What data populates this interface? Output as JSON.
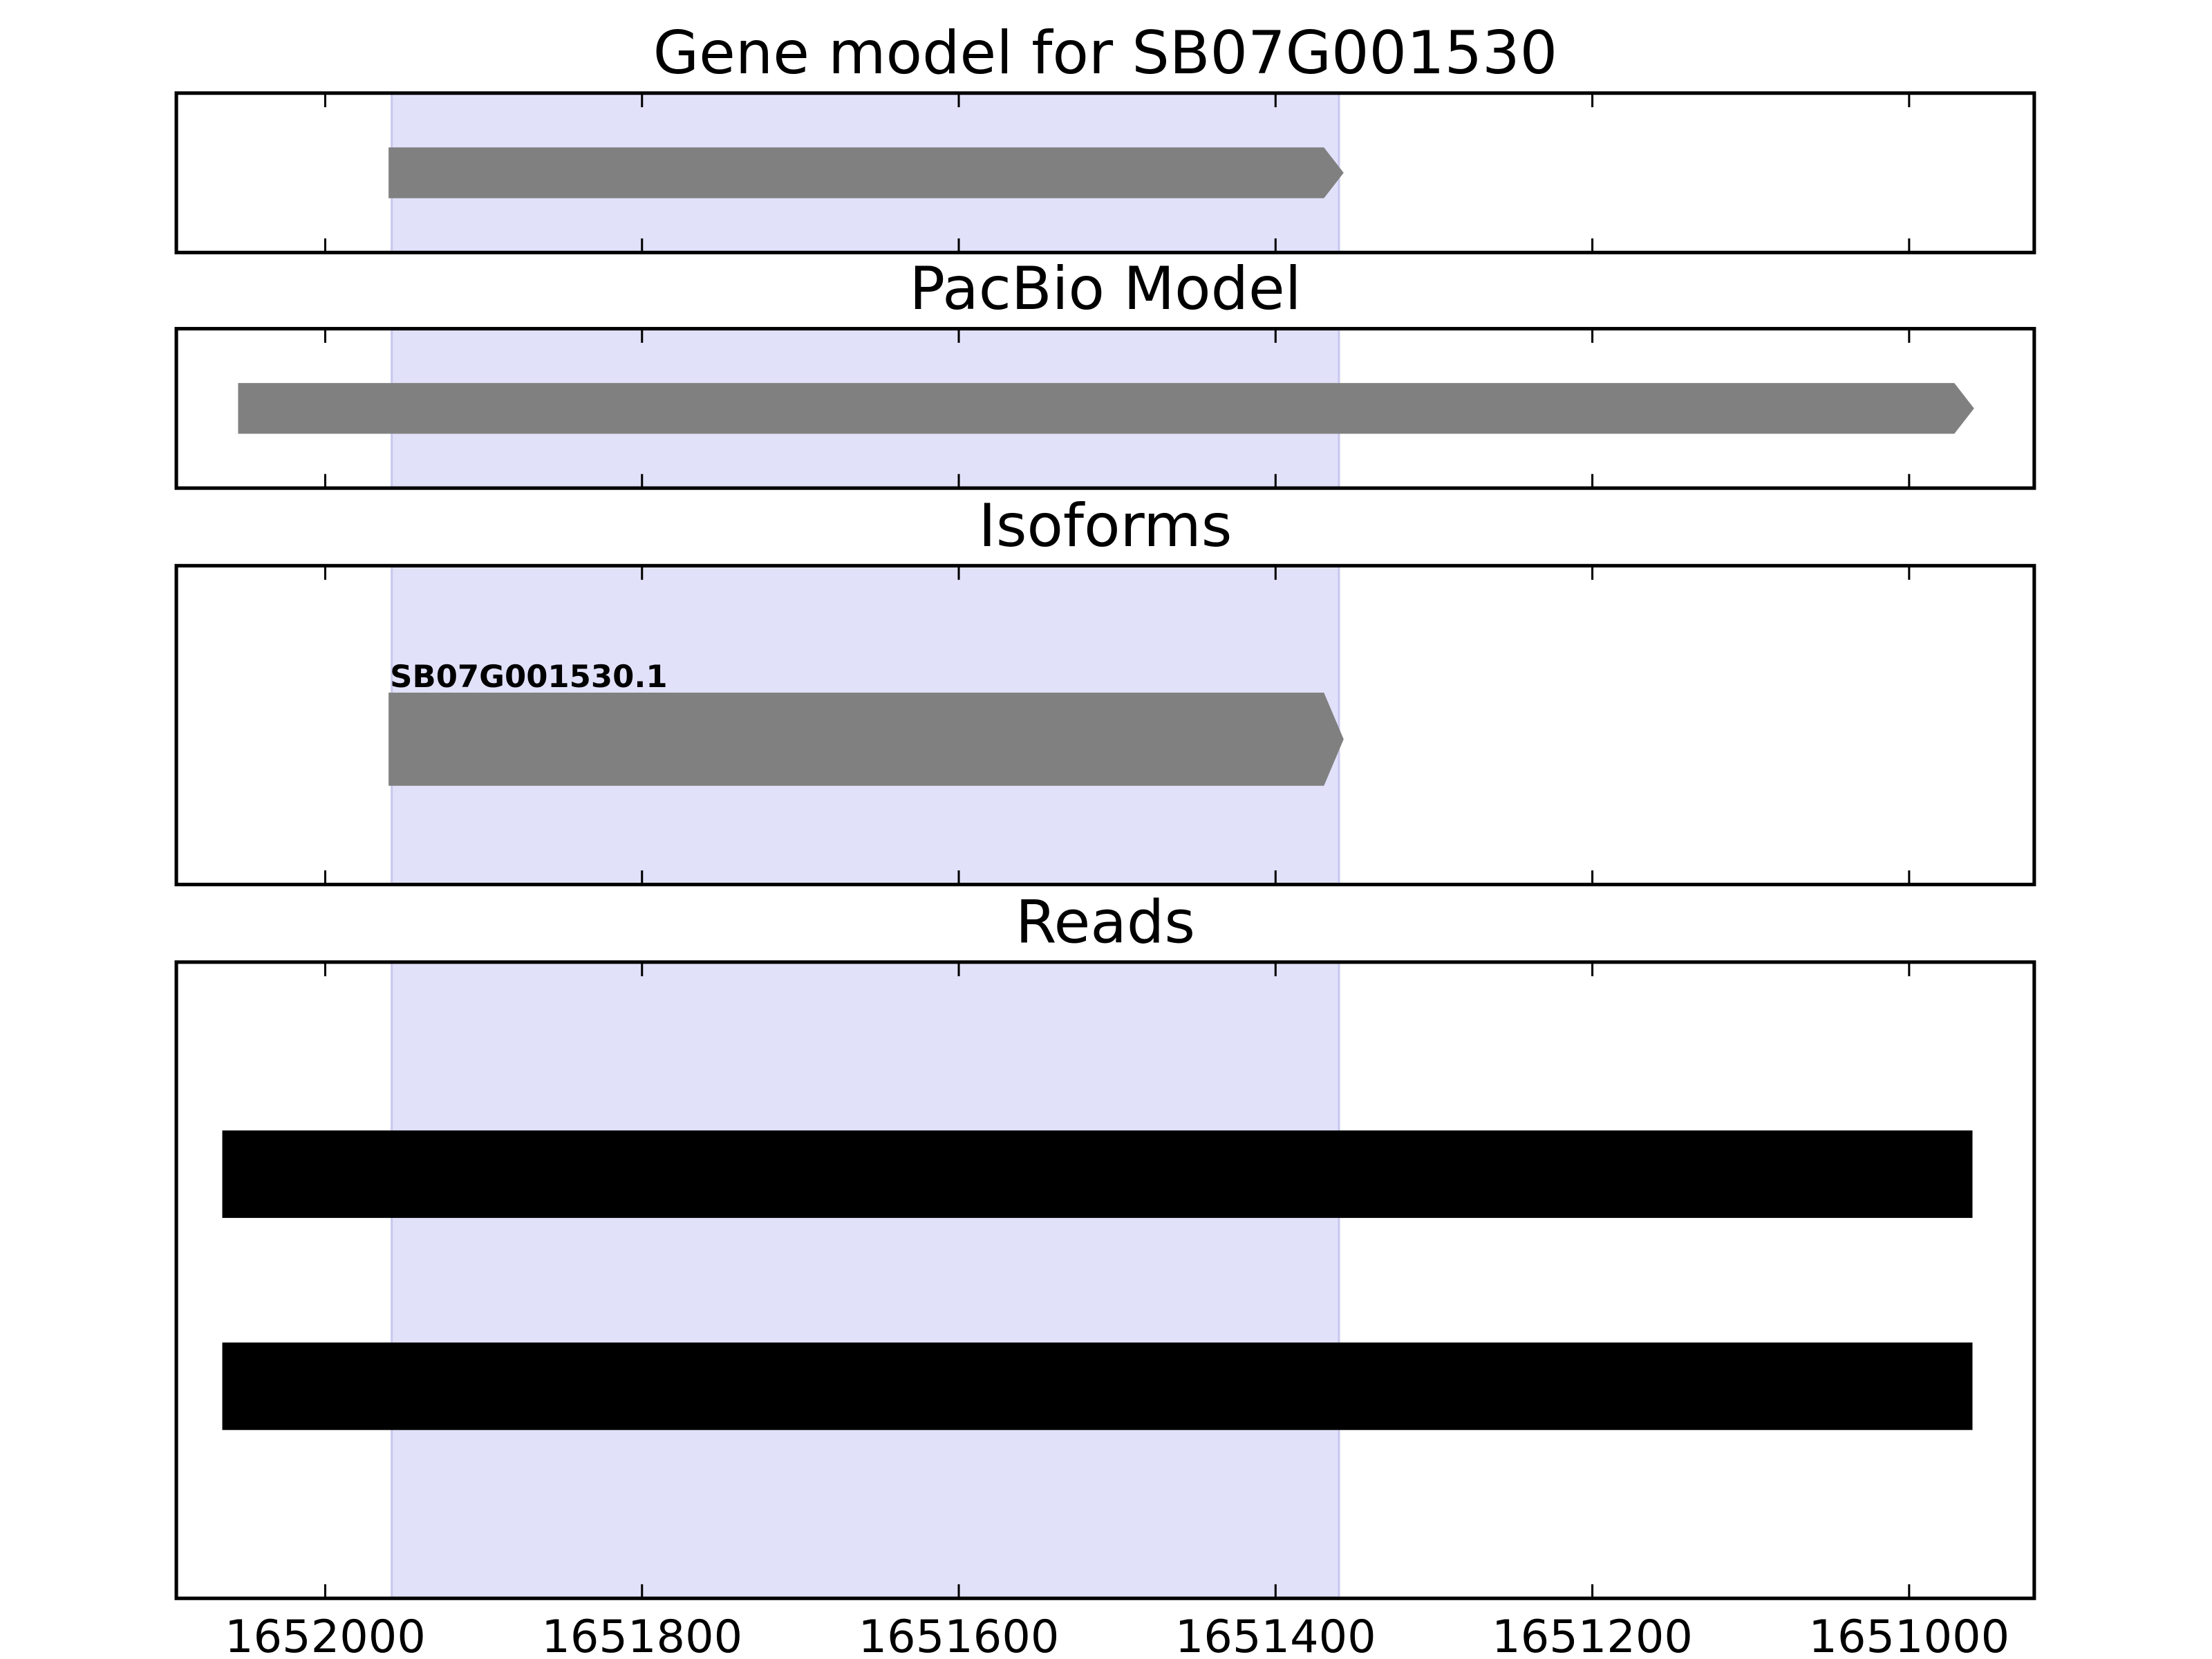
{
  "chart_data": [
    {
      "type": "track",
      "title": "Gene model for SB07G001530",
      "xlim": [
        1652094,
        1650921
      ],
      "xticks": [
        1652000,
        1651800,
        1651600,
        1651400,
        1651200,
        1651000
      ],
      "tick_labels": false,
      "highlight": [
        1651958,
        1651360
      ],
      "highlight_color": "#e1e1fa",
      "features": [
        {
          "start": 1651960,
          "end": 1651357,
          "shape": "arrow",
          "color": "#808080"
        }
      ]
    },
    {
      "type": "track",
      "title": "PacBio Model",
      "xlim": [
        1652094,
        1650921
      ],
      "xticks": [
        1652000,
        1651800,
        1651600,
        1651400,
        1651200,
        1651000
      ],
      "tick_labels": false,
      "highlight": [
        1651958,
        1651360
      ],
      "highlight_color": "#e1e1fa",
      "features": [
        {
          "start": 1652055,
          "end": 1650959,
          "shape": "arrow",
          "color": "#808080"
        }
      ]
    },
    {
      "type": "track",
      "title": "Isoforms",
      "xlim": [
        1652094,
        1650921
      ],
      "xticks": [
        1652000,
        1651800,
        1651600,
        1651400,
        1651200,
        1651000
      ],
      "tick_labels": false,
      "highlight": [
        1651958,
        1651360
      ],
      "highlight_color": "#e1e1fa",
      "features": [
        {
          "label": "SB07G001530.1",
          "start": 1651960,
          "end": 1651357,
          "shape": "arrow",
          "color": "#808080"
        }
      ]
    },
    {
      "type": "track",
      "title": "Reads",
      "xlim": [
        1652094,
        1650921
      ],
      "xticks": [
        1652000,
        1651800,
        1651600,
        1651400,
        1651200,
        1651000
      ],
      "tick_labels": true,
      "highlight": [
        1651958,
        1651360
      ],
      "highlight_color": "#e1e1fa",
      "features": [
        {
          "start": 1652065,
          "end": 1650960,
          "shape": "box",
          "color": "#000000"
        },
        {
          "start": 1652065,
          "end": 1650960,
          "shape": "box",
          "color": "#000000"
        }
      ]
    }
  ]
}
